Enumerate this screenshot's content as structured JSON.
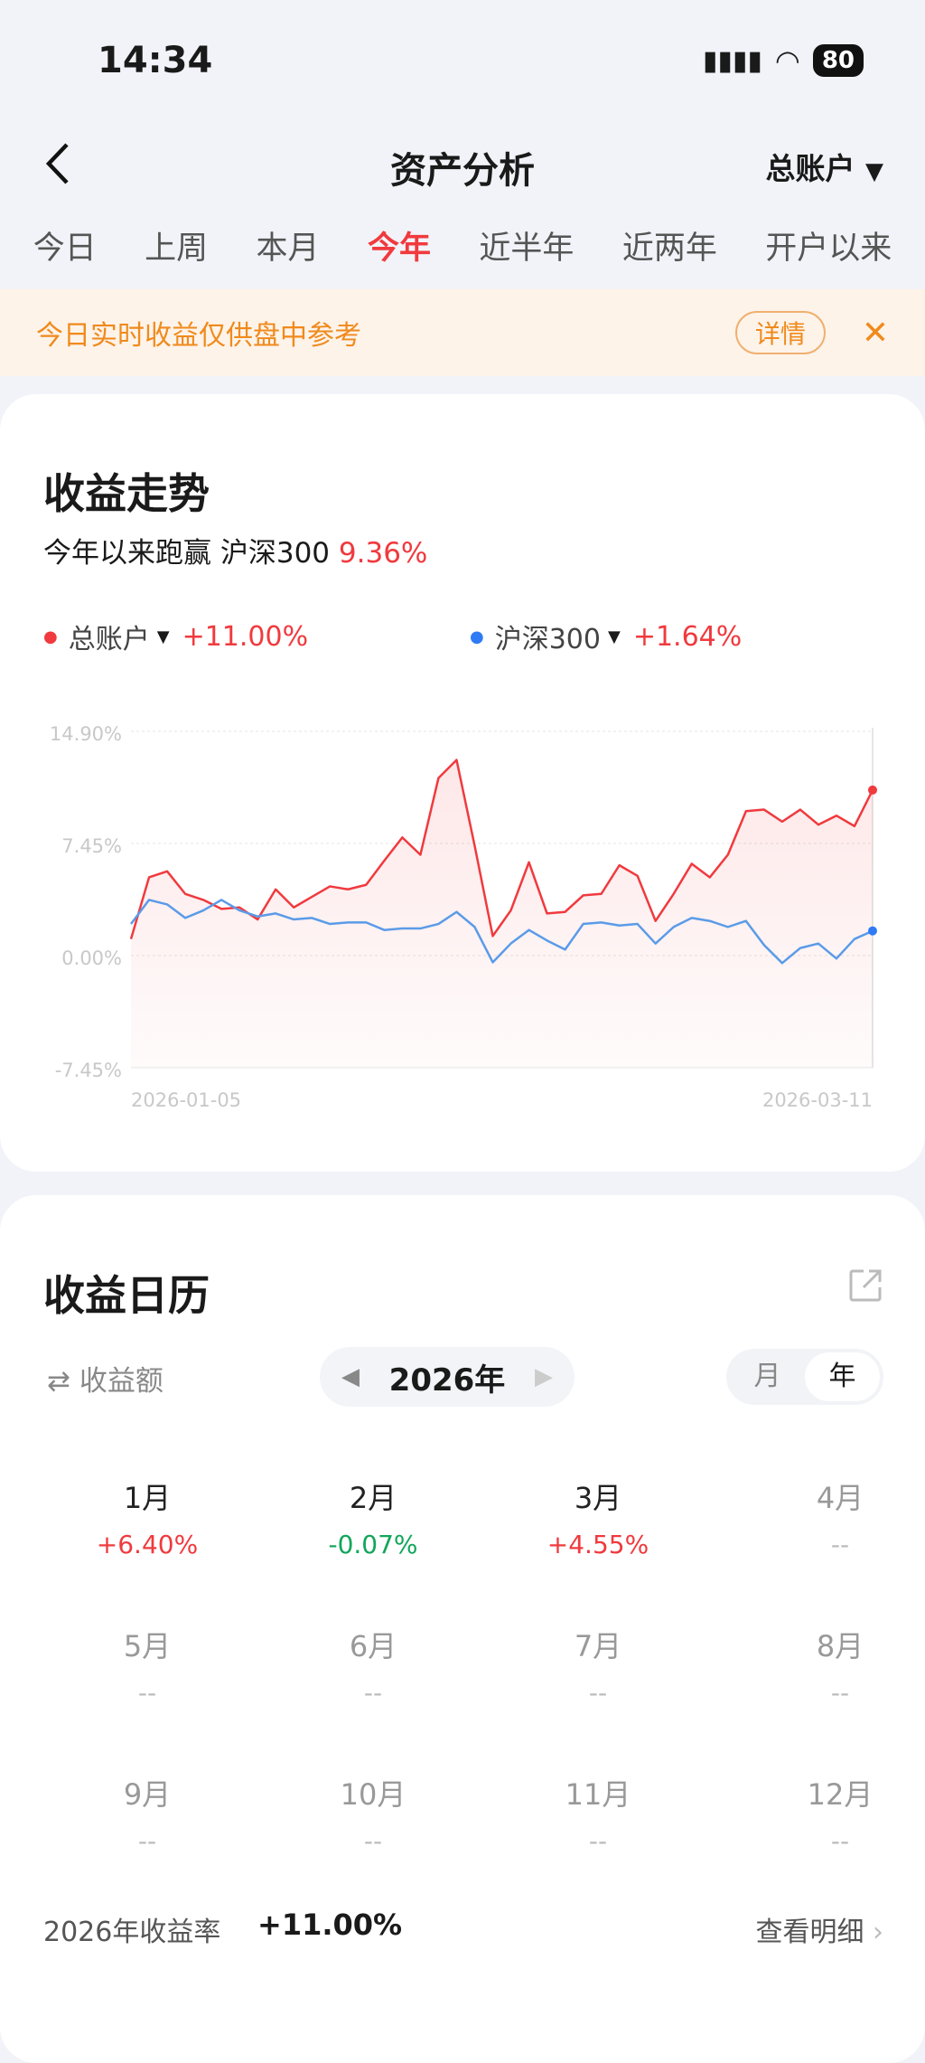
{
  "status": {
    "time": "14:34",
    "battery": "80"
  },
  "nav": {
    "title": "资产分析",
    "account": "总账户",
    "back_icon": "chevron-left-icon"
  },
  "tabs": [
    {
      "label": "今日"
    },
    {
      "label": "上周"
    },
    {
      "label": "本月"
    },
    {
      "label": "今年",
      "active": true
    },
    {
      "label": "近半年"
    },
    {
      "label": "近两年"
    },
    {
      "label": "开户以来"
    }
  ],
  "banner": {
    "text": "今日实时收益仅供盘中参考",
    "detail": "详情"
  },
  "trend": {
    "title": "收益走势",
    "subtitle": "今年以来跑赢 沪深300",
    "subtitle_value": "9.36%",
    "legend": [
      {
        "name": "总账户",
        "value": "+11.00%",
        "color": "#f03a3e"
      },
      {
        "name": "沪深300",
        "value": "+1.64%",
        "color": "#2f7bf5"
      }
    ]
  },
  "chart_data": {
    "type": "line",
    "ylim": [
      -7.45,
      14.9
    ],
    "yticks": [
      "14.90%",
      "7.45%",
      "0.00%",
      "-7.45%"
    ],
    "ytick_values": [
      14.9,
      7.45,
      0,
      -7.45
    ],
    "xticks": [
      "2026-01-05",
      "2026-03-11"
    ],
    "grid": true,
    "legend_placement": "top",
    "series": [
      {
        "name": "总账户",
        "color": "#f03a3e",
        "values": [
          1.1,
          5.2,
          5.6,
          4.1,
          3.7,
          3.1,
          3.2,
          2.4,
          4.4,
          3.2,
          3.9,
          4.6,
          4.4,
          4.7,
          6.3,
          7.85,
          6.7,
          11.8,
          13.0,
          7.3,
          1.3,
          3.0,
          6.2,
          2.8,
          2.9,
          4.0,
          4.1,
          6.0,
          5.3,
          2.3,
          4.1,
          6.1,
          5.2,
          6.7,
          9.6,
          9.7,
          8.9,
          9.7,
          8.7,
          9.3,
          8.6,
          11.0
        ]
      },
      {
        "name": "沪深300",
        "color": "#5a9be8",
        "values": [
          2.1,
          3.7,
          3.4,
          2.5,
          3.0,
          3.7,
          3.0,
          2.6,
          2.8,
          2.4,
          2.5,
          2.1,
          2.2,
          2.2,
          1.7,
          1.8,
          1.8,
          2.1,
          2.9,
          1.9,
          -0.45,
          0.8,
          1.7,
          1.0,
          0.4,
          2.1,
          2.2,
          2.0,
          2.1,
          0.8,
          1.9,
          2.5,
          2.3,
          1.9,
          2.3,
          0.7,
          -0.5,
          0.5,
          0.8,
          -0.2,
          1.1,
          1.64
        ]
      }
    ]
  },
  "calendar": {
    "title": "收益日历",
    "metric": "收益额",
    "year": "2026年",
    "toggle": [
      "月",
      "年"
    ],
    "toggle_active": "年",
    "months": [
      {
        "m": "1月",
        "v": "+6.40%",
        "c": "red"
      },
      {
        "m": "2月",
        "v": "-0.07%",
        "c": "green"
      },
      {
        "m": "3月",
        "v": "+4.55%",
        "c": "red"
      },
      {
        "m": "4月",
        "v": "--"
      },
      {
        "m": "5月",
        "v": "--"
      },
      {
        "m": "6月",
        "v": "--"
      },
      {
        "m": "7月",
        "v": "--"
      },
      {
        "m": "8月",
        "v": "--"
      },
      {
        "m": "9月",
        "v": "--"
      },
      {
        "m": "10月",
        "v": "--"
      },
      {
        "m": "11月",
        "v": "--"
      },
      {
        "m": "12月",
        "v": "--"
      }
    ],
    "footer_label": "2026年收益率",
    "footer_value": "+11.00%",
    "detail_link": "查看明细"
  }
}
